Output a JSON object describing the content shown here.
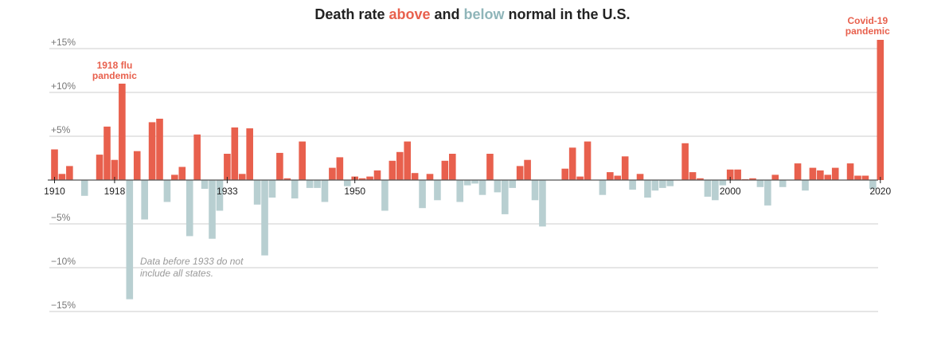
{
  "chart_data": {
    "type": "bar",
    "title": {
      "part1": "Death rate ",
      "above": "above",
      "part2": " and ",
      "below": "below",
      "part3": " normal in the U.S."
    },
    "colors": {
      "above": "#e8604d",
      "below": "#b8cfd1",
      "zero_line": "#555555",
      "grid": "#cccccc"
    },
    "xlim": [
      1910,
      2020
    ],
    "ylim": [
      -15,
      15
    ],
    "y_ticks": [
      {
        "value": 15,
        "label": "+15%"
      },
      {
        "value": 10,
        "label": "+10%"
      },
      {
        "value": 5,
        "label": "+5%"
      },
      {
        "value": -5,
        "label": "−5%"
      },
      {
        "value": -10,
        "label": "−10%"
      },
      {
        "value": -15,
        "label": "−15%"
      }
    ],
    "x_ticks": [
      {
        "value": 1910,
        "label": "1910"
      },
      {
        "value": 1918,
        "label": "1918"
      },
      {
        "value": 1933,
        "label": "1933"
      },
      {
        "value": 1950,
        "label": "1950"
      },
      {
        "value": 2000,
        "label": "2000"
      },
      {
        "value": 2020,
        "label": "2020"
      }
    ],
    "annotations": [
      {
        "name": "flu-annotation",
        "year": 1918,
        "lines": [
          "1918 flu",
          "pandemic"
        ],
        "style": "red"
      },
      {
        "name": "covid-annotation",
        "year": 2020,
        "lines": [
          "Covid-19",
          "pandemic"
        ],
        "style": "red"
      },
      {
        "name": "states-note",
        "year": 1921,
        "lines": [
          "Data before 1933 do not",
          "include all states."
        ],
        "style": "note"
      }
    ],
    "x": [
      1910,
      1911,
      1912,
      1913,
      1914,
      1915,
      1916,
      1917,
      1918,
      1919,
      1920,
      1921,
      1922,
      1923,
      1924,
      1925,
      1926,
      1927,
      1928,
      1929,
      1930,
      1931,
      1932,
      1933,
      1934,
      1935,
      1936,
      1937,
      1938,
      1939,
      1940,
      1941,
      1942,
      1943,
      1944,
      1945,
      1946,
      1947,
      1948,
      1949,
      1950,
      1951,
      1952,
      1953,
      1954,
      1955,
      1956,
      1957,
      1958,
      1959,
      1960,
      1961,
      1962,
      1963,
      1964,
      1965,
      1966,
      1967,
      1968,
      1969,
      1970,
      1971,
      1972,
      1973,
      1974,
      1975,
      1976,
      1977,
      1978,
      1979,
      1980,
      1981,
      1982,
      1983,
      1984,
      1985,
      1986,
      1987,
      1988,
      1989,
      1990,
      1991,
      1992,
      1993,
      1994,
      1995,
      1996,
      1997,
      1998,
      1999,
      2000,
      2001,
      2002,
      2003,
      2004,
      2005,
      2006,
      2007,
      2008,
      2009,
      2010,
      2011,
      2012,
      2013,
      2014,
      2015,
      2016,
      2017,
      2018,
      2019,
      2020
    ],
    "values": [
      3.5,
      0.7,
      1.6,
      0,
      -1.8,
      0,
      2.9,
      6.1,
      2.3,
      11,
      -13.6,
      3.3,
      -4.5,
      6.6,
      7,
      -2.5,
      0.6,
      1.5,
      -6.4,
      5.2,
      -1,
      -6.7,
      -3.5,
      3,
      6,
      0.7,
      5.9,
      -2.8,
      -8.6,
      -2,
      3.1,
      0.2,
      -2.1,
      4.4,
      -0.9,
      -0.9,
      -2.5,
      1.4,
      2.6,
      -0.7,
      0.4,
      0.2,
      0.4,
      1.1,
      -3.5,
      2.2,
      3.2,
      4.4,
      0.8,
      -3.2,
      0.7,
      -2.3,
      2.2,
      3,
      -2.5,
      -0.6,
      -0.4,
      -1.7,
      3,
      -1.4,
      -3.9,
      -0.9,
      1.6,
      2.3,
      -2.3,
      -5.3,
      0,
      0,
      1.3,
      3.7,
      0.4,
      4.4,
      0,
      -1.7,
      0.9,
      0.5,
      2.7,
      -1.1,
      0.7,
      -2,
      -1.2,
      -0.9,
      -0.7,
      0,
      4.2,
      0.9,
      0.2,
      -1.9,
      -2.3,
      -0.6,
      1.2,
      1.2,
      0.1,
      0.2,
      -0.8,
      -2.9,
      0.6,
      -0.8,
      0,
      1.9,
      -1.2,
      1.4,
      1.1,
      0.6,
      1.4,
      0,
      1.9,
      0.5,
      0.5,
      -1,
      16
    ]
  }
}
